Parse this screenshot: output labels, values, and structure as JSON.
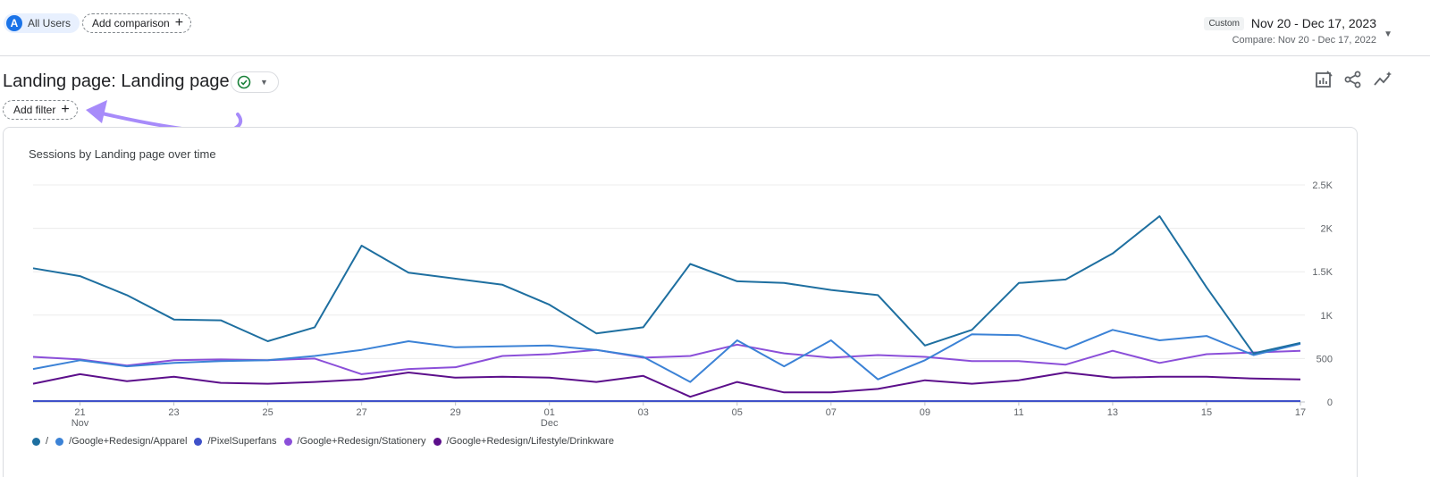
{
  "header": {
    "segment": {
      "avatar_letter": "A",
      "label": "All Users"
    },
    "add_comparison_label": "Add comparison",
    "date": {
      "badge": "Custom",
      "range": "Nov 20 - Dec 17, 2023",
      "compare": "Compare: Nov 20 - Dec 17, 2022"
    }
  },
  "report": {
    "title": "Landing page: Landing page",
    "add_filter_label": "Add filter"
  },
  "icons": [
    "checkmark-icon",
    "chart-edit-icon",
    "share-icon",
    "insights-icon",
    "plus-icon",
    "caret-down-icon"
  ],
  "colors": {
    "accent": "#1a73e8",
    "annotation_arrow": "#a78bfa"
  },
  "chart_data": {
    "type": "line",
    "title": "Sessions by Landing page over time",
    "x": [
      "Nov 20",
      "Nov 21",
      "Nov 22",
      "Nov 23",
      "Nov 24",
      "Nov 25",
      "Nov 26",
      "Nov 27",
      "Nov 28",
      "Nov 29",
      "Nov 30",
      "Dec 01",
      "Dec 02",
      "Dec 03",
      "Dec 04",
      "Dec 05",
      "Dec 06",
      "Dec 07",
      "Dec 08",
      "Dec 09",
      "Dec 10",
      "Dec 11",
      "Dec 12",
      "Dec 13",
      "Dec 14",
      "Dec 15",
      "Dec 16",
      "Dec 17"
    ],
    "x_ticks": [
      {
        "index": 1,
        "label": "21",
        "sub": "Nov"
      },
      {
        "index": 3,
        "label": "23",
        "sub": ""
      },
      {
        "index": 5,
        "label": "25",
        "sub": ""
      },
      {
        "index": 7,
        "label": "27",
        "sub": ""
      },
      {
        "index": 9,
        "label": "29",
        "sub": ""
      },
      {
        "index": 11,
        "label": "01",
        "sub": "Dec"
      },
      {
        "index": 13,
        "label": "03",
        "sub": ""
      },
      {
        "index": 15,
        "label": "05",
        "sub": ""
      },
      {
        "index": 17,
        "label": "07",
        "sub": ""
      },
      {
        "index": 19,
        "label": "09",
        "sub": ""
      },
      {
        "index": 21,
        "label": "11",
        "sub": ""
      },
      {
        "index": 23,
        "label": "13",
        "sub": ""
      },
      {
        "index": 25,
        "label": "15",
        "sub": ""
      },
      {
        "index": 27,
        "label": "17",
        "sub": ""
      }
    ],
    "y_ticks": [
      {
        "value": 0,
        "label": "0"
      },
      {
        "value": 500,
        "label": "500"
      },
      {
        "value": 1000,
        "label": "1K"
      },
      {
        "value": 1500,
        "label": "1.5K"
      },
      {
        "value": 2000,
        "label": "2K"
      },
      {
        "value": 2500,
        "label": "2.5K"
      }
    ],
    "ylim": [
      0,
      2500
    ],
    "grid": true,
    "legend_position": "bottom-left",
    "series": [
      {
        "name": "/",
        "color": "#1e6fa0",
        "values": [
          1540,
          1450,
          1230,
          950,
          940,
          700,
          860,
          1800,
          1490,
          1420,
          1350,
          1120,
          790,
          860,
          1590,
          1390,
          1370,
          1290,
          1230,
          650,
          830,
          1370,
          1410,
          1710,
          2140,
          1320,
          560,
          680
        ]
      },
      {
        "name": "/Google+Redesign/Apparel",
        "color": "#3b82d6",
        "values": [
          380,
          480,
          410,
          450,
          470,
          480,
          530,
          600,
          700,
          630,
          640,
          650,
          600,
          520,
          230,
          710,
          410,
          710,
          260,
          480,
          780,
          770,
          610,
          830,
          710,
          760,
          540,
          670
        ]
      },
      {
        "name": "/PixelSuperfans",
        "color": "#3f51c9",
        "values": [
          10,
          10,
          10,
          10,
          10,
          10,
          10,
          10,
          10,
          10,
          10,
          10,
          10,
          10,
          10,
          10,
          10,
          10,
          10,
          10,
          10,
          10,
          10,
          10,
          10,
          10,
          10,
          10
        ]
      },
      {
        "name": "/Google+Redesign/Stationery",
        "color": "#8b4fd9",
        "values": [
          520,
          490,
          420,
          480,
          490,
          480,
          500,
          320,
          380,
          400,
          530,
          550,
          600,
          510,
          530,
          660,
          560,
          510,
          540,
          520,
          470,
          470,
          430,
          590,
          450,
          550,
          570,
          590
        ]
      },
      {
        "name": "/Google+Redesign/Lifestyle/Drinkware",
        "color": "#5c0f8b",
        "values": [
          210,
          320,
          240,
          290,
          220,
          210,
          230,
          260,
          340,
          280,
          290,
          280,
          230,
          300,
          60,
          230,
          110,
          110,
          150,
          250,
          210,
          250,
          340,
          280,
          290,
          290,
          270,
          260
        ]
      }
    ]
  }
}
